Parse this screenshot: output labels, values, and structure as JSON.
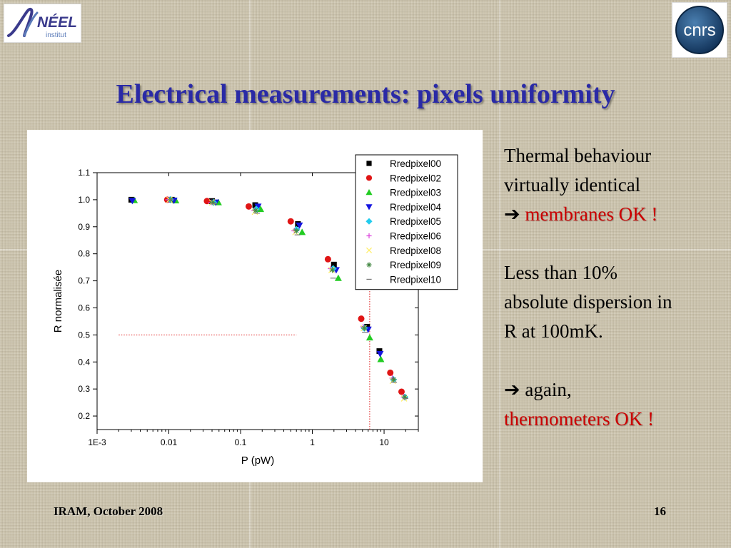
{
  "logos": {
    "left_text": "NÉEL",
    "left_subtext": "institut",
    "right_text": "cnrs"
  },
  "slide": {
    "title": "Electrical measurements: pixels uniformity",
    "footer_left": "IRAM, October 2008",
    "page_number": "16"
  },
  "side_text": {
    "p1_line1": "Thermal behaviour",
    "p1_line2": "virtually identical",
    "arrow": "➔",
    "p1_highlight": "membranes OK !",
    "p2_line1": "Less than 10%",
    "p2_line2": "absolute dispersion in",
    "p2_line3": "R at 100mK.",
    "p3_text": "again,",
    "p3_highlight": "thermometers OK !"
  },
  "colors": {
    "title": "#2a2aa6",
    "highlight": "#cc0000"
  },
  "chart_data": {
    "type": "scatter",
    "xlabel": "P (pW)",
    "ylabel": "R normalisée",
    "xscale": "log",
    "xlim": [
      0.001,
      30
    ],
    "ylim": [
      0.15,
      1.1
    ],
    "x_ticks": [
      0.001,
      0.01,
      0.1,
      1,
      10
    ],
    "x_tick_labels": [
      "1E-3",
      "0.01",
      "0.1",
      "1",
      "10"
    ],
    "y_ticks": [
      0.2,
      0.3,
      0.4,
      0.5,
      0.6,
      0.7,
      0.8,
      0.9,
      1.0,
      1.1
    ],
    "y_tick_labels": [
      "0.2",
      "0.3",
      "0.4",
      "0.5",
      "0.6",
      "0.7",
      "0.8",
      "0.9",
      "1.0",
      "1.1"
    ],
    "legend_position": "top-right",
    "reference_lines": [
      {
        "orientation": "horizontal",
        "y": 0.5,
        "x_from": 0.002,
        "x_to": 0.6
      },
      {
        "orientation": "vertical",
        "x": 6.3,
        "y_from": 0.15,
        "y_to": 0.71
      }
    ],
    "series": [
      {
        "name": "Rredpixel00",
        "marker": "square",
        "color": "#000000",
        "points": [
          [
            0.003,
            1.0
          ],
          [
            0.011,
            1.0
          ],
          [
            0.04,
            0.995
          ],
          [
            0.16,
            0.98
          ],
          [
            0.63,
            0.91
          ],
          [
            2.0,
            0.76
          ],
          [
            5.8,
            0.53
          ],
          [
            8.6,
            0.44
          ]
        ]
      },
      {
        "name": "Rredpixel02",
        "marker": "circle",
        "color": "#e01515",
        "points": [
          [
            0.0095,
            1.0
          ],
          [
            0.034,
            0.995
          ],
          [
            0.13,
            0.975
          ],
          [
            0.5,
            0.92
          ],
          [
            1.65,
            0.78
          ],
          [
            4.8,
            0.56
          ],
          [
            12.2,
            0.36
          ],
          [
            17.5,
            0.29
          ]
        ]
      },
      {
        "name": "Rredpixel03",
        "marker": "triangle-up",
        "color": "#22cc22",
        "points": [
          [
            0.0033,
            0.998
          ],
          [
            0.0125,
            0.997
          ],
          [
            0.049,
            0.99
          ],
          [
            0.19,
            0.965
          ],
          [
            0.72,
            0.88
          ],
          [
            2.3,
            0.71
          ],
          [
            6.3,
            0.49
          ],
          [
            9.0,
            0.41
          ]
        ]
      },
      {
        "name": "Rredpixel04",
        "marker": "triangle-down",
        "color": "#1414e0",
        "points": [
          [
            0.0031,
            0.996
          ],
          [
            0.0118,
            0.997
          ],
          [
            0.045,
            0.99
          ],
          [
            0.175,
            0.975
          ],
          [
            0.66,
            0.905
          ],
          [
            2.15,
            0.74
          ],
          [
            6.0,
            0.52
          ],
          [
            8.8,
            0.43
          ]
        ]
      },
      {
        "name": "Rredpixel05",
        "marker": "diamond",
        "color": "#22ccee",
        "points": [
          [
            0.0105,
            1.0
          ],
          [
            0.042,
            0.99
          ],
          [
            0.165,
            0.965
          ],
          [
            0.6,
            0.89
          ],
          [
            1.95,
            0.745
          ],
          [
            5.3,
            0.525
          ],
          [
            13.5,
            0.335
          ],
          [
            19.5,
            0.27
          ]
        ]
      },
      {
        "name": "Rredpixel06",
        "marker": "plus",
        "color": "#dd44dd",
        "points": [
          [
            0.0098,
            1.0
          ],
          [
            0.039,
            0.99
          ],
          [
            0.155,
            0.96
          ],
          [
            0.56,
            0.885
          ],
          [
            1.8,
            0.745
          ],
          [
            5.1,
            0.53
          ],
          [
            13.0,
            0.34
          ],
          [
            18.8,
            0.27
          ]
        ]
      },
      {
        "name": "Rredpixel08",
        "marker": "x",
        "color": "#ffee66",
        "points": [
          [
            0.0102,
            1.0
          ],
          [
            0.04,
            0.99
          ],
          [
            0.158,
            0.955
          ],
          [
            0.58,
            0.88
          ],
          [
            1.85,
            0.74
          ],
          [
            5.2,
            0.525
          ],
          [
            13.2,
            0.33
          ],
          [
            19.0,
            0.265
          ]
        ]
      },
      {
        "name": "Rredpixel09",
        "marker": "asterisk",
        "color": "#448844",
        "points": [
          [
            0.0106,
            1.0
          ],
          [
            0.041,
            0.99
          ],
          [
            0.162,
            0.96
          ],
          [
            0.6,
            0.885
          ],
          [
            1.9,
            0.74
          ],
          [
            5.3,
            0.525
          ],
          [
            13.6,
            0.335
          ],
          [
            19.4,
            0.27
          ]
        ]
      },
      {
        "name": "Rredpixel10",
        "marker": "dash",
        "color": "#777777",
        "points": [
          [
            0.0108,
            1.0
          ],
          [
            0.043,
            0.985
          ],
          [
            0.17,
            0.95
          ],
          [
            0.62,
            0.87
          ],
          [
            1.95,
            0.71
          ],
          [
            5.4,
            0.51
          ],
          [
            13.8,
            0.325
          ],
          [
            19.8,
            0.265
          ]
        ]
      }
    ]
  }
}
